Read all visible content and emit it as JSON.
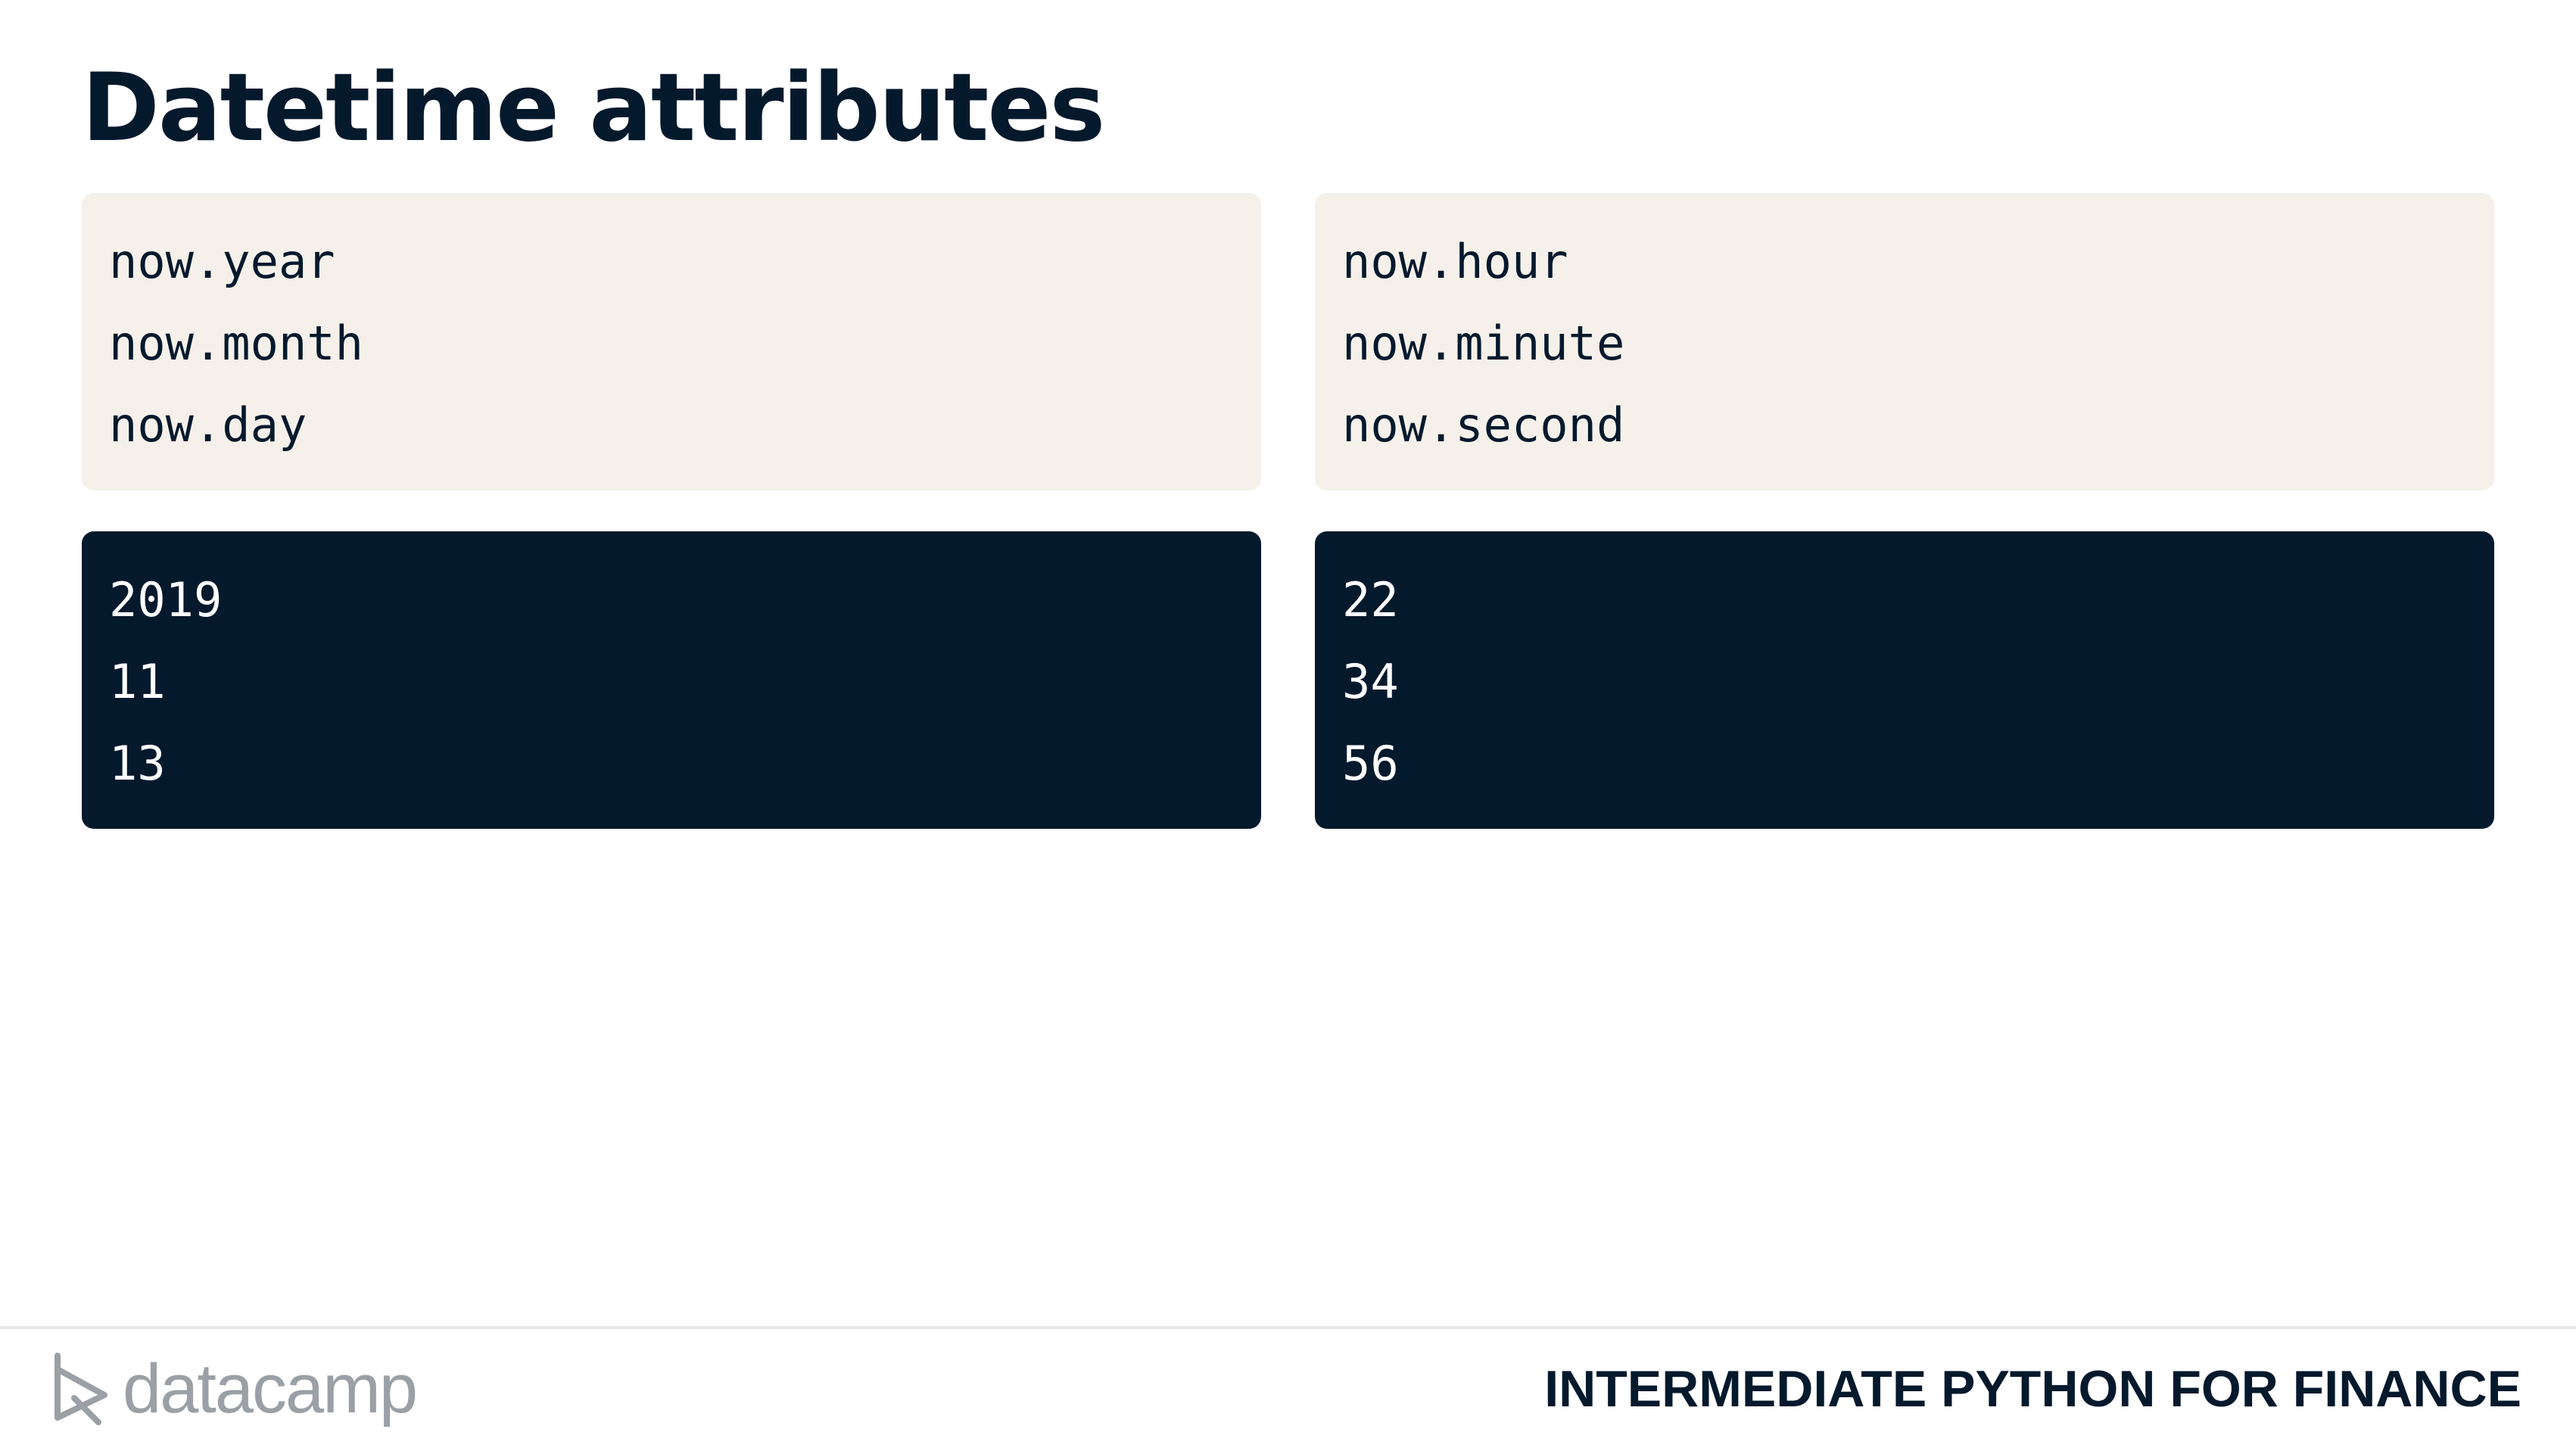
{
  "slide": {
    "title": "Datetime attributes"
  },
  "code_blocks": {
    "left_input": [
      "now.year",
      "now.month",
      "now.day"
    ],
    "right_input": [
      "now.hour",
      "now.minute",
      "now.second"
    ],
    "left_output": [
      "2019",
      "11",
      "13"
    ],
    "right_output": [
      "22",
      "34",
      "56"
    ]
  },
  "footer": {
    "logo_text": "datacamp",
    "logo_icon": "datacamp-logo-icon",
    "course_title": "INTERMEDIATE PYTHON FOR FINANCE"
  },
  "colors": {
    "navy": "#05192d",
    "code_background": "#f5f1ea",
    "logo_gray": "#9aa0a6"
  }
}
